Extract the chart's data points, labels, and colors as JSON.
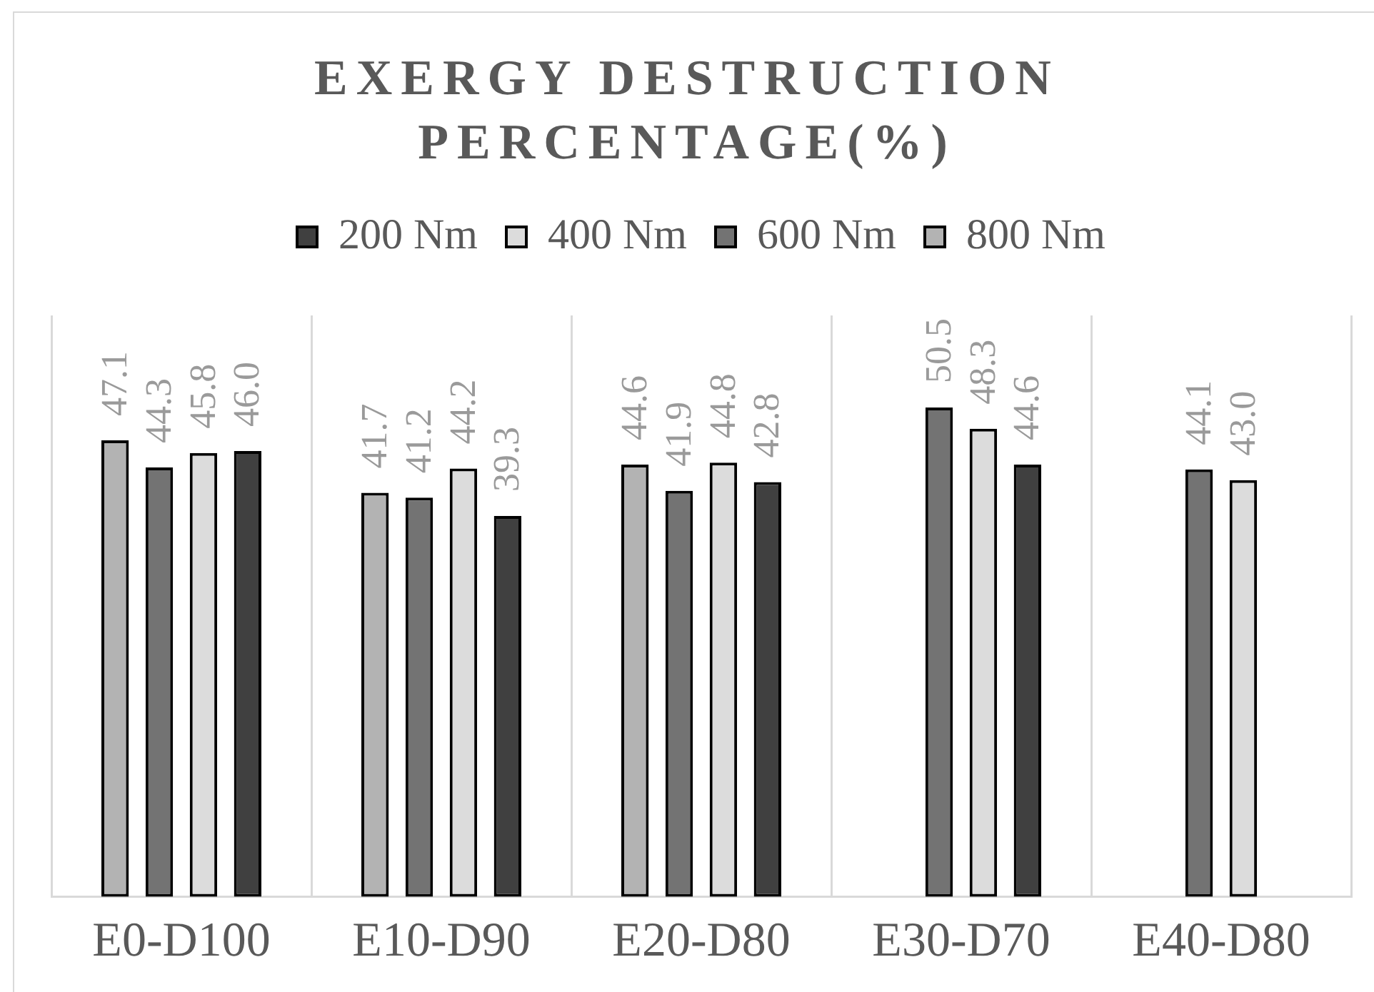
{
  "chart_data": {
    "type": "bar",
    "title": "EXERGY DESTRUCTION PERCENTAGE(%)",
    "categories": [
      "E0-D100",
      "E10-D90",
      "E20-D80",
      "E30-D70",
      "E40-D80"
    ],
    "series": [
      {
        "name": "800 Nm",
        "color": "#b3b3b3",
        "values": [
          47.1,
          41.7,
          44.6,
          null,
          null
        ],
        "value_labels": [
          "47.1",
          "41.7",
          "44.6",
          null,
          null
        ]
      },
      {
        "name": "600 Nm",
        "color": "#737373",
        "values": [
          44.3,
          41.2,
          41.9,
          50.5,
          44.1
        ],
        "value_labels": [
          "44.3",
          "41.2",
          "41.9",
          "50.5",
          "44.1"
        ]
      },
      {
        "name": "400 Nm",
        "color": "#dcdcdc",
        "values": [
          45.8,
          44.2,
          44.8,
          48.3,
          43.0
        ],
        "value_labels": [
          "45.8",
          "44.2",
          "44.8",
          "48.3",
          "43.0"
        ]
      },
      {
        "name": "200 Nm",
        "color": "#404040",
        "values": [
          46.0,
          39.3,
          42.8,
          44.6,
          null
        ],
        "value_labels": [
          "46.0",
          "39.3",
          "42.8",
          "44.6",
          null
        ]
      }
    ],
    "ylim": [
      0,
      60
    ],
    "grid": "x",
    "legend": "top",
    "tick_labels": "x"
  }
}
